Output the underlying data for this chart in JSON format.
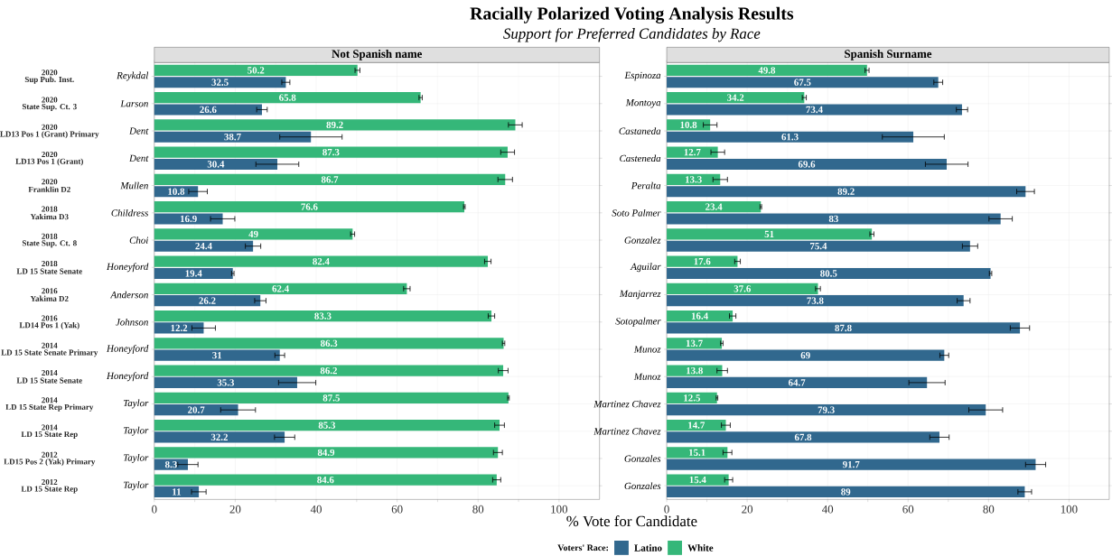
{
  "chart_data": [
    {
      "type": "bar",
      "orientation": "horizontal",
      "title": "Not Spanish name",
      "xlabel": "% Vote for Candidate",
      "categories": [
        "Reykdal",
        "Larson",
        "Dent",
        "Dent",
        "Mullen",
        "Childress",
        "Choi",
        "Honeyford",
        "Anderson",
        "Johnson",
        "Honeyford",
        "Honeyford",
        "Taylor",
        "Taylor",
        "Taylor",
        "Taylor"
      ],
      "series": [
        {
          "color": "#31688e",
          "values": [
            32.5,
            26.6,
            38.7,
            30.4,
            10.8,
            16.9,
            24.4,
            19.4,
            26.2,
            12.2,
            31,
            35.3,
            20.7,
            32.2,
            8.3,
            11
          ],
          "errors": [
            1.0,
            1.3,
            7.7,
            5.3,
            2.3,
            3.0,
            1.9,
            0.3,
            1.4,
            2.9,
            1.2,
            4.6,
            4.3,
            2.5,
            2.5,
            1.8
          ]
        },
        {
          "color": "#35b779",
          "values": [
            50.2,
            65.8,
            89.2,
            87.3,
            86.7,
            76.6,
            49,
            82.4,
            62.4,
            83.3,
            86.3,
            86.2,
            87.5,
            85.3,
            84.9,
            84.6
          ],
          "errors": [
            0.6,
            0.4,
            1.7,
            1.7,
            1.8,
            0.2,
            0.5,
            0.8,
            0.8,
            0.8,
            0.3,
            1.2,
            0.2,
            1.2,
            1.1,
            1.0
          ]
        }
      ],
      "annotations": [
        "2020",
        "Sup Pub. Inst.",
        "2020",
        "State Sup. Ct. 3",
        "2020",
        "LD13 Pos 1 (Grant) Primary",
        "2020",
        "LD13 Pos 1 (Grant)",
        "2020",
        "Franklin D2",
        "2018",
        "Yakima D3",
        "2018",
        "State Sup. Ct. 8",
        "2018",
        "LD 15 State Senate",
        "2016",
        "Yakima D2",
        "2016",
        "LD14 Pos 1 (Yak)",
        "2014",
        "LD 15 State Senate Primary",
        "2014",
        "LD 15 State Senate",
        "2014",
        "LD 15 State Rep Primary",
        "2014",
        "LD 15 State Rep",
        "2012",
        "LD15 Pos 2 (Yak) Primary",
        "2012",
        "LD 15 State Rep"
      ],
      "xlim": [
        0,
        110
      ],
      "xticks": [
        0,
        20,
        40,
        60,
        80,
        100
      ],
      "grid": true,
      "data_labels": true
    },
    {
      "type": "bar",
      "orientation": "horizontal",
      "title": "Spanish Surname",
      "categories": [
        "Espinoza",
        "Montoya",
        "Castaneda",
        "Casteneda",
        "Peralta",
        "Soto Palmer",
        "Gonzalez",
        "Aguilar",
        "Manjarrez",
        "Sotopalmer",
        "Munoz",
        "Munoz",
        "Martinez Chavez",
        "Martinez Chavez",
        "Gonzales",
        "Gonzales"
      ],
      "series": [
        {
          "name": "Latino",
          "color": "#31688e",
          "values": [
            67.5,
            73.4,
            61.3,
            69.6,
            89.2,
            83,
            75.4,
            80.5,
            73.8,
            87.8,
            69,
            64.7,
            79.3,
            67.8,
            91.7,
            89
          ],
          "errors": [
            1.1,
            1.4,
            7.7,
            5.3,
            2.2,
            2.9,
            1.9,
            0.3,
            1.6,
            2.4,
            1.1,
            4.5,
            4.2,
            2.4,
            2.5,
            1.7
          ]
        },
        {
          "name": "White",
          "color": "#35b779",
          "values": [
            49.8,
            34.2,
            10.8,
            12.7,
            13.3,
            23.4,
            51,
            17.6,
            37.6,
            16.4,
            13.7,
            13.8,
            12.5,
            14.7,
            15.1,
            15.4
          ],
          "errors": [
            0.5,
            0.5,
            1.7,
            1.7,
            1.8,
            0.2,
            0.5,
            0.7,
            0.6,
            0.8,
            0.3,
            1.3,
            0.2,
            1.1,
            1.1,
            1.0
          ]
        }
      ],
      "xlim": [
        0,
        110
      ],
      "xticks": [
        0,
        20,
        40,
        60,
        80,
        100
      ],
      "grid": true,
      "data_labels": true,
      "legend": "bottom",
      "legend_title": "Voters' Race:"
    },
    {
      "type": "other",
      "title": "Racially Polarized Voting Analysis Results",
      "subtitle": "Support for Preferred Candidates by Race"
    }
  ]
}
